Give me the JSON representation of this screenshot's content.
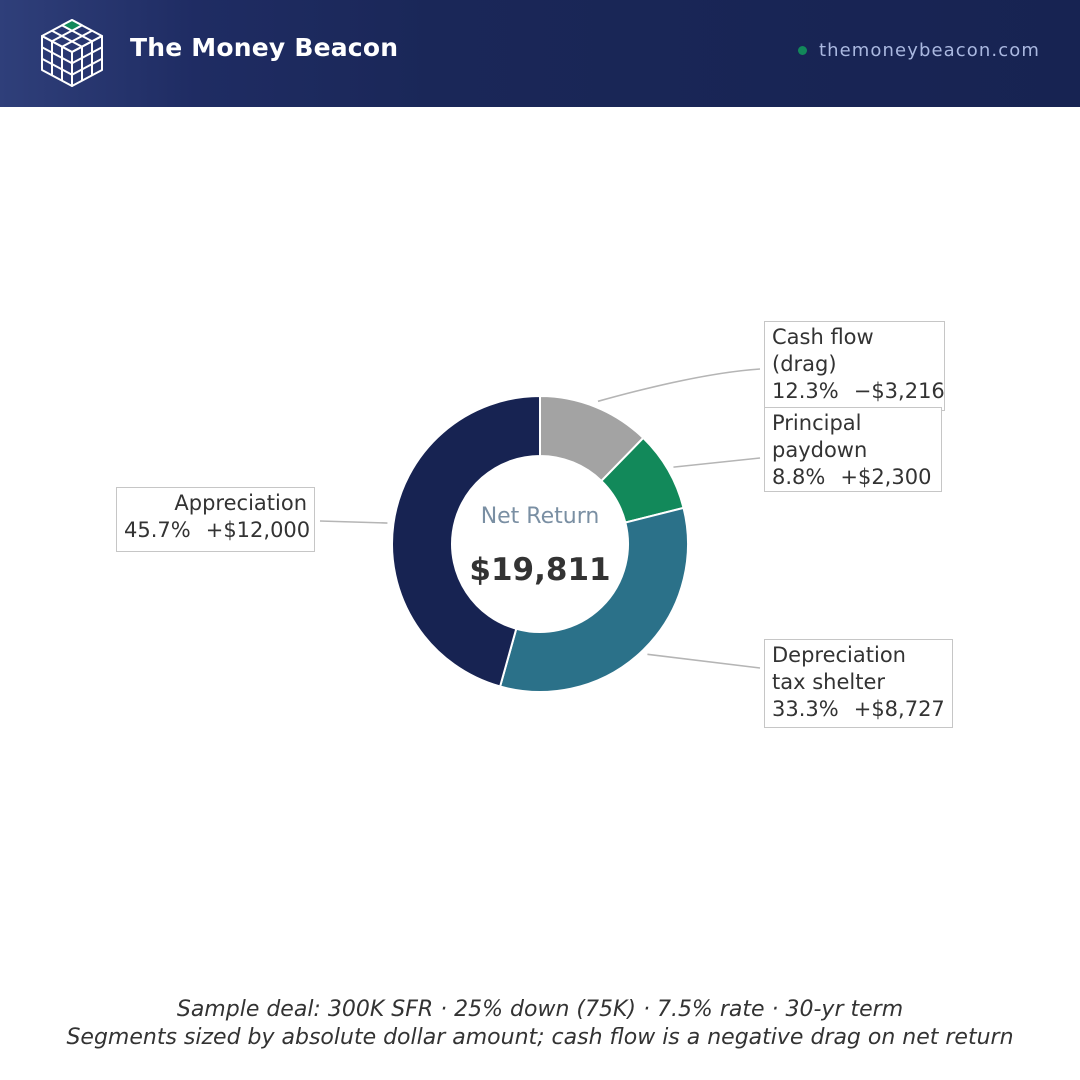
{
  "brand": {
    "name": "The Money Beacon",
    "site": "themoneybeacon.com",
    "logo_icon": "cube-grid-icon",
    "colors": {
      "header": "#1a2758",
      "accent": "#12895a",
      "site_text": "#aab8e0"
    }
  },
  "chart_data": {
    "type": "pie",
    "variant": "donut",
    "center_label": "Net Return",
    "center_value": "$19,811",
    "slices": [
      {
        "key": "cash_flow",
        "name_lines": [
          "Cash flow",
          "(drag)"
        ],
        "percent": 12.3,
        "percent_label": "12.3%",
        "amount": -3216,
        "amount_label": "−$3,216",
        "color": "#a3a3a3"
      },
      {
        "key": "principal",
        "name_lines": [
          "Principal",
          "paydown"
        ],
        "percent": 8.8,
        "percent_label": "8.8%",
        "amount": 2300,
        "amount_label": "+$2,300",
        "color": "#12895a"
      },
      {
        "key": "depreciation",
        "name_lines": [
          "Depreciation",
          "tax shelter"
        ],
        "percent": 33.3,
        "percent_label": "33.3%",
        "amount": 8727,
        "amount_label": "+$8,727",
        "color": "#2b7189"
      },
      {
        "key": "appreciation",
        "name_lines": [
          "Appreciation"
        ],
        "percent": 45.7,
        "percent_label": "45.7%",
        "amount": 12000,
        "amount_label": "+$12,000",
        "color": "#172352"
      }
    ]
  },
  "footnote": {
    "line1": "Sample deal: 300K SFR · 25% down (75K) · 7.5% rate · 30-yr term",
    "line2": "Segments sized by absolute dollar amount; cash flow is a negative drag on net return"
  }
}
